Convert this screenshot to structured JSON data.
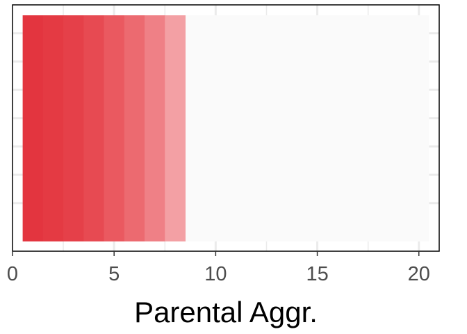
{
  "chart_data": {
    "type": "bar",
    "orientation": "horizontal-segments",
    "xlabel": "Parental Aggr.",
    "ylabel": "",
    "xlim": [
      0,
      21
    ],
    "xticks": [
      0,
      5,
      10,
      15,
      20
    ],
    "xtick_labels": [
      "0",
      "5",
      "10",
      "15",
      "20"
    ],
    "grid": true,
    "background_band": {
      "from": 0.5,
      "to": 20.5,
      "color": "#fafafa"
    },
    "segments": [
      {
        "value": 1,
        "color": "#e3353f"
      },
      {
        "value": 2,
        "color": "#e43a43"
      },
      {
        "value": 3,
        "color": "#e54049"
      },
      {
        "value": 4,
        "color": "#e74a52"
      },
      {
        "value": 5,
        "color": "#ea5960"
      },
      {
        "value": 6,
        "color": "#ec6a70"
      },
      {
        "value": 7,
        "color": "#ef8086"
      },
      {
        "value": 8,
        "color": "#f3a0a4"
      }
    ]
  }
}
